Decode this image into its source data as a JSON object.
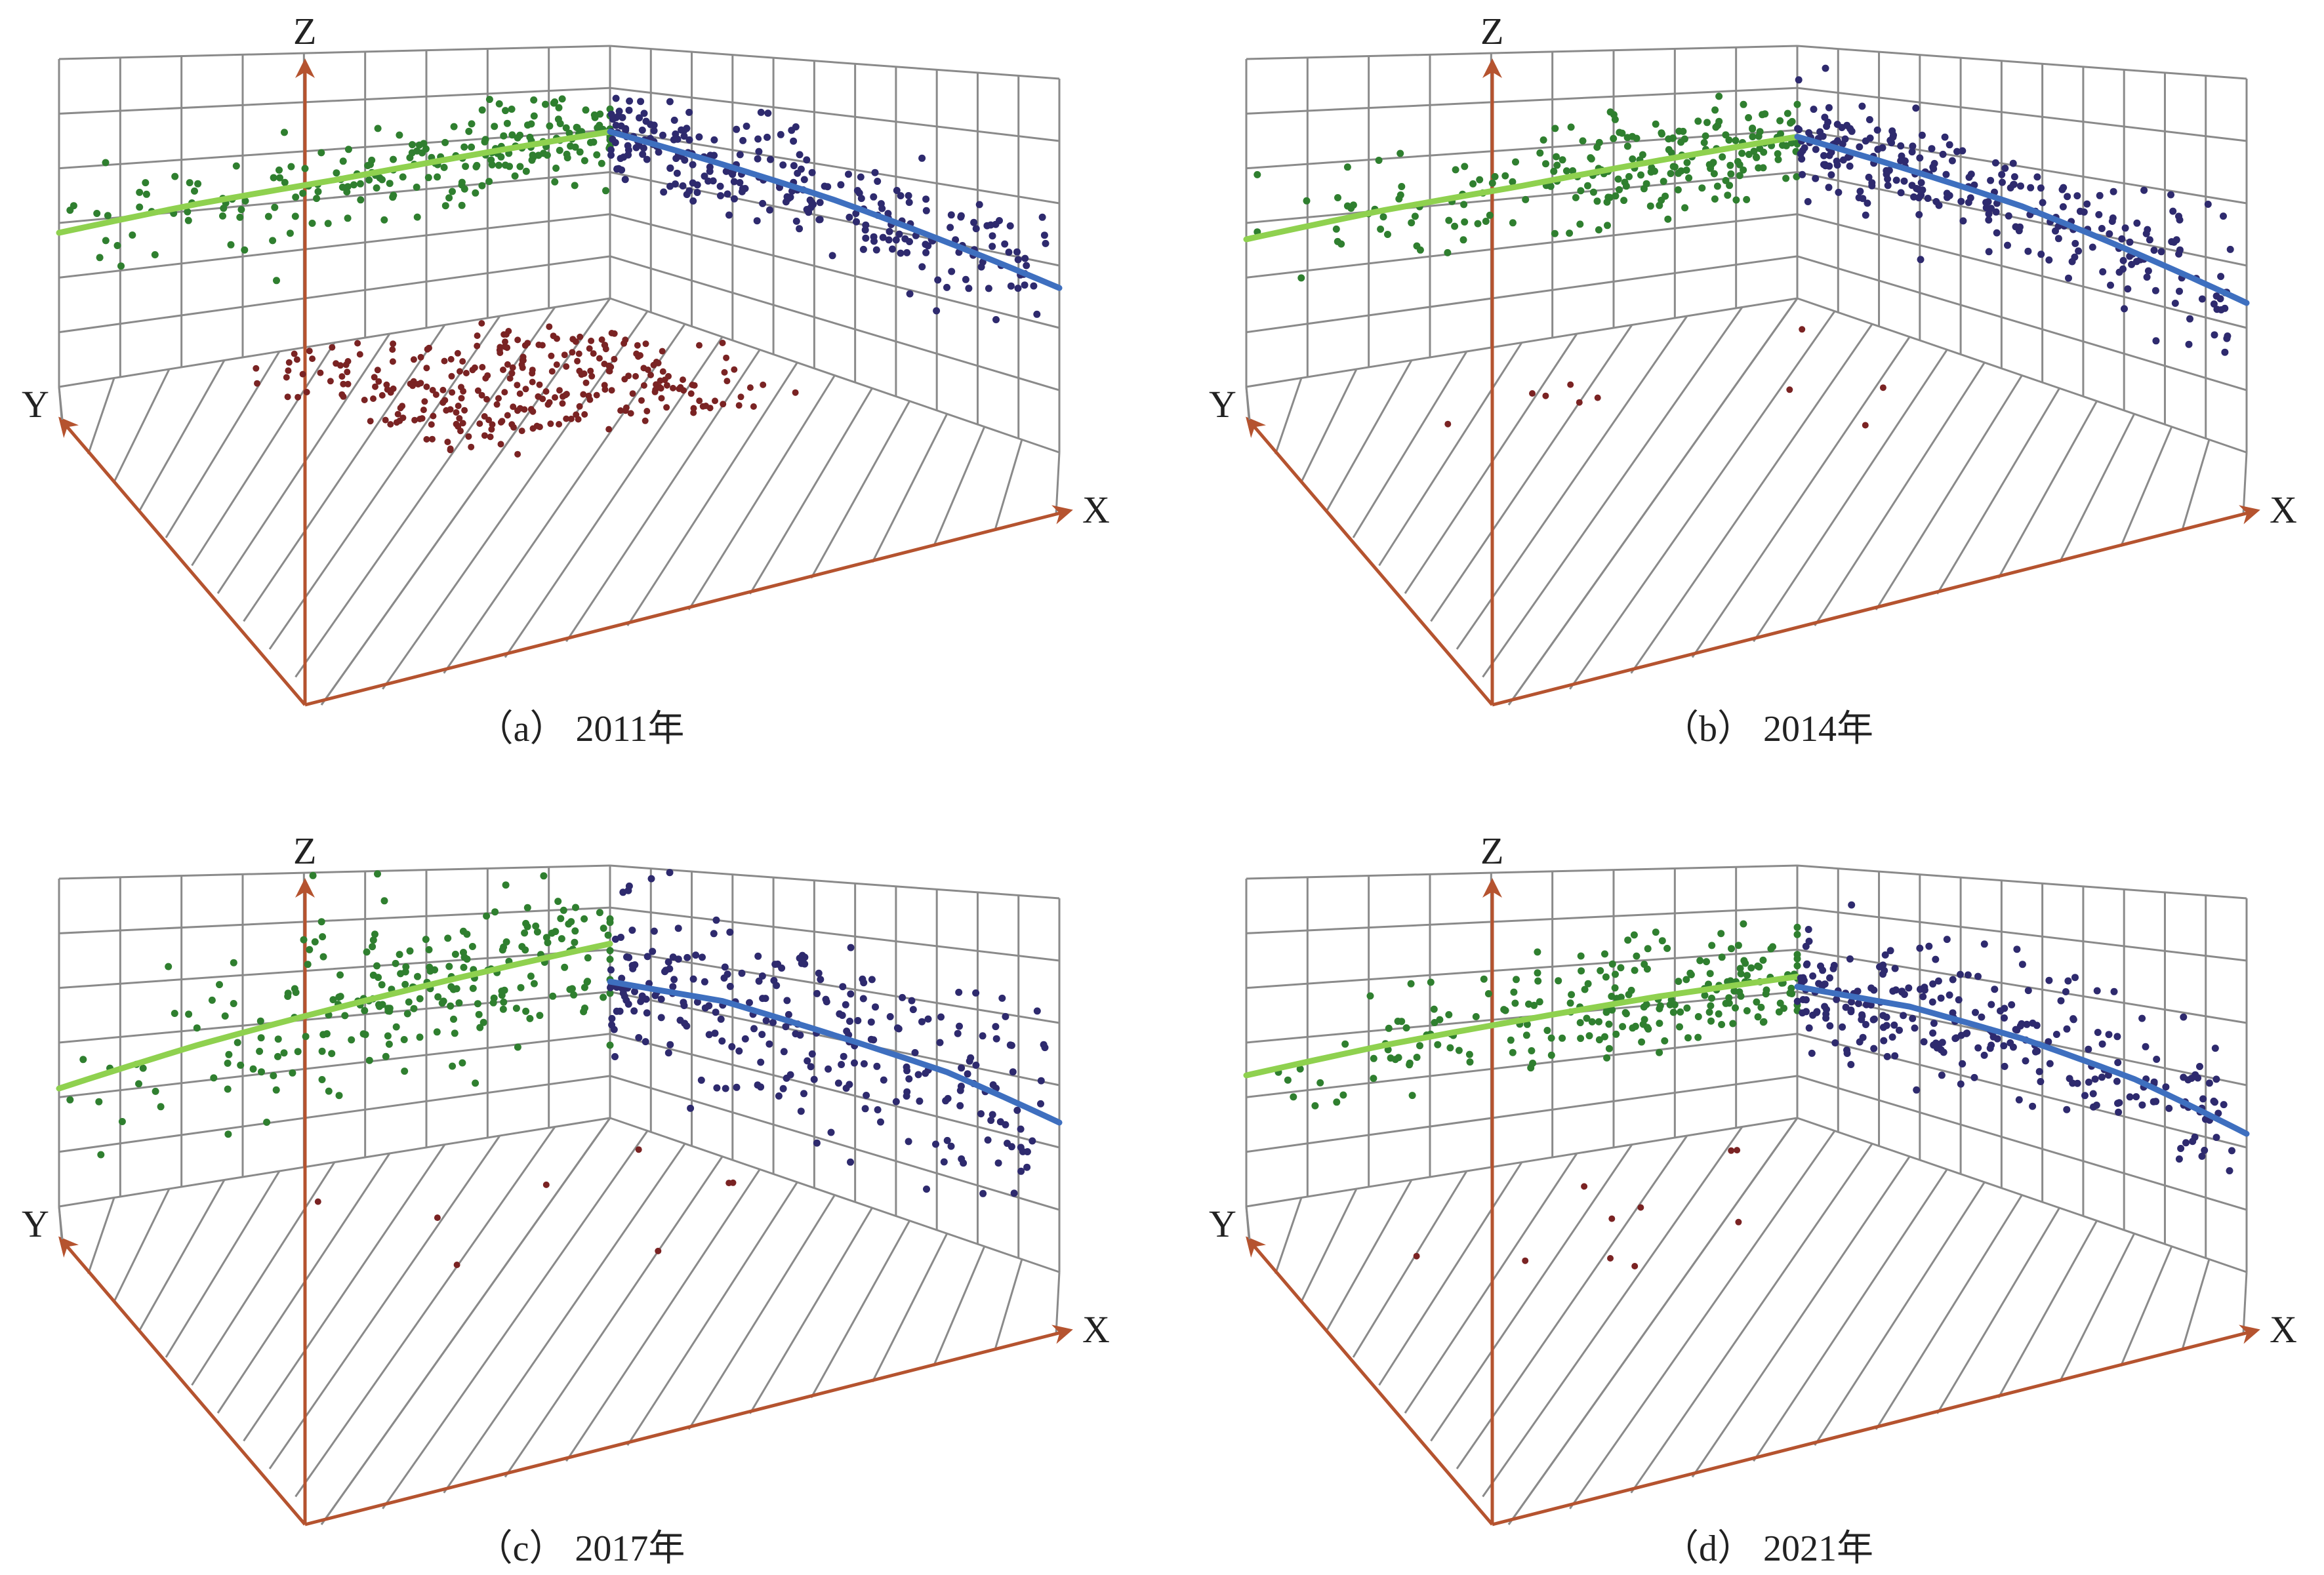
{
  "figure": {
    "axis_labels": {
      "x": "X",
      "y": "Y",
      "z": "Z"
    },
    "colors": {
      "axis": "#b5532f",
      "grid": "#8a8a8a",
      "yz_points": "#2f7f2f",
      "yz_trend": "#8fd14f",
      "xz_points": "#2e2a6e",
      "xz_trend": "#3e6fbf",
      "xy_points": "#7a2323"
    }
  },
  "chart_data": [
    {
      "type": "scatter",
      "panel": "a",
      "caption": "（a） 2011年",
      "title": "",
      "grid": true,
      "series": [
        {
          "plane": "YZ",
          "points": 220,
          "spread": 0.09,
          "trend": [
            [
              0.0,
              0.47
            ],
            [
              0.25,
              0.52
            ],
            [
              0.5,
              0.56
            ],
            [
              0.75,
              0.61
            ],
            [
              1.0,
              0.66
            ]
          ]
        },
        {
          "plane": "XZ",
          "points": 260,
          "spread": 0.08,
          "trend": [
            [
              0.0,
              0.66
            ],
            [
              0.25,
              0.61
            ],
            [
              0.5,
              0.56
            ],
            [
              0.75,
              0.5
            ],
            [
              1.0,
              0.44
            ]
          ]
        },
        {
          "plane": "XY",
          "points": 300,
          "spread": 0.0,
          "trend": []
        }
      ]
    },
    {
      "type": "scatter",
      "panel": "b",
      "caption": "（b） 2014年",
      "title": "",
      "grid": true,
      "series": [
        {
          "plane": "YZ",
          "points": 220,
          "spread": 0.1,
          "trend": [
            [
              0.0,
              0.45
            ],
            [
              0.25,
              0.5
            ],
            [
              0.5,
              0.54
            ],
            [
              0.75,
              0.59
            ],
            [
              1.0,
              0.64
            ]
          ]
        },
        {
          "plane": "XZ",
          "points": 260,
          "spread": 0.09,
          "trend": [
            [
              0.0,
              0.64
            ],
            [
              0.25,
              0.59
            ],
            [
              0.5,
              0.54
            ],
            [
              0.75,
              0.47
            ],
            [
              1.0,
              0.4
            ]
          ]
        },
        {
          "plane": "XY",
          "points": 10,
          "spread": 0.0,
          "trend": []
        }
      ]
    },
    {
      "type": "scatter",
      "panel": "c",
      "caption": "（c） 2017年",
      "title": "",
      "grid": true,
      "series": [
        {
          "plane": "YZ",
          "points": 230,
          "spread": 0.15,
          "trend": [
            [
              0.0,
              0.36
            ],
            [
              0.25,
              0.45
            ],
            [
              0.5,
              0.53
            ],
            [
              0.75,
              0.61
            ],
            [
              1.0,
              0.69
            ]
          ]
        },
        {
          "plane": "XZ",
          "points": 260,
          "spread": 0.15,
          "trend": [
            [
              0.0,
              0.54
            ],
            [
              0.25,
              0.55
            ],
            [
              0.5,
              0.51
            ],
            [
              0.75,
              0.47
            ],
            [
              1.0,
              0.4
            ]
          ]
        },
        {
          "plane": "XY",
          "points": 8,
          "spread": 0.0,
          "trend": []
        }
      ]
    },
    {
      "type": "scatter",
      "panel": "d",
      "caption": "（d） 2021年",
      "title": "",
      "grid": true,
      "series": [
        {
          "plane": "YZ",
          "points": 220,
          "spread": 0.11,
          "trend": [
            [
              0.0,
              0.4
            ],
            [
              0.25,
              0.45
            ],
            [
              0.5,
              0.49
            ],
            [
              0.75,
              0.53
            ],
            [
              1.0,
              0.56
            ]
          ]
        },
        {
          "plane": "XZ",
          "points": 260,
          "spread": 0.12,
          "trend": [
            [
              0.0,
              0.52
            ],
            [
              0.25,
              0.53
            ],
            [
              0.5,
              0.5
            ],
            [
              0.75,
              0.45
            ],
            [
              1.0,
              0.37
            ]
          ]
        },
        {
          "plane": "XY",
          "points": 10,
          "spread": 0.0,
          "trend": []
        }
      ]
    }
  ]
}
